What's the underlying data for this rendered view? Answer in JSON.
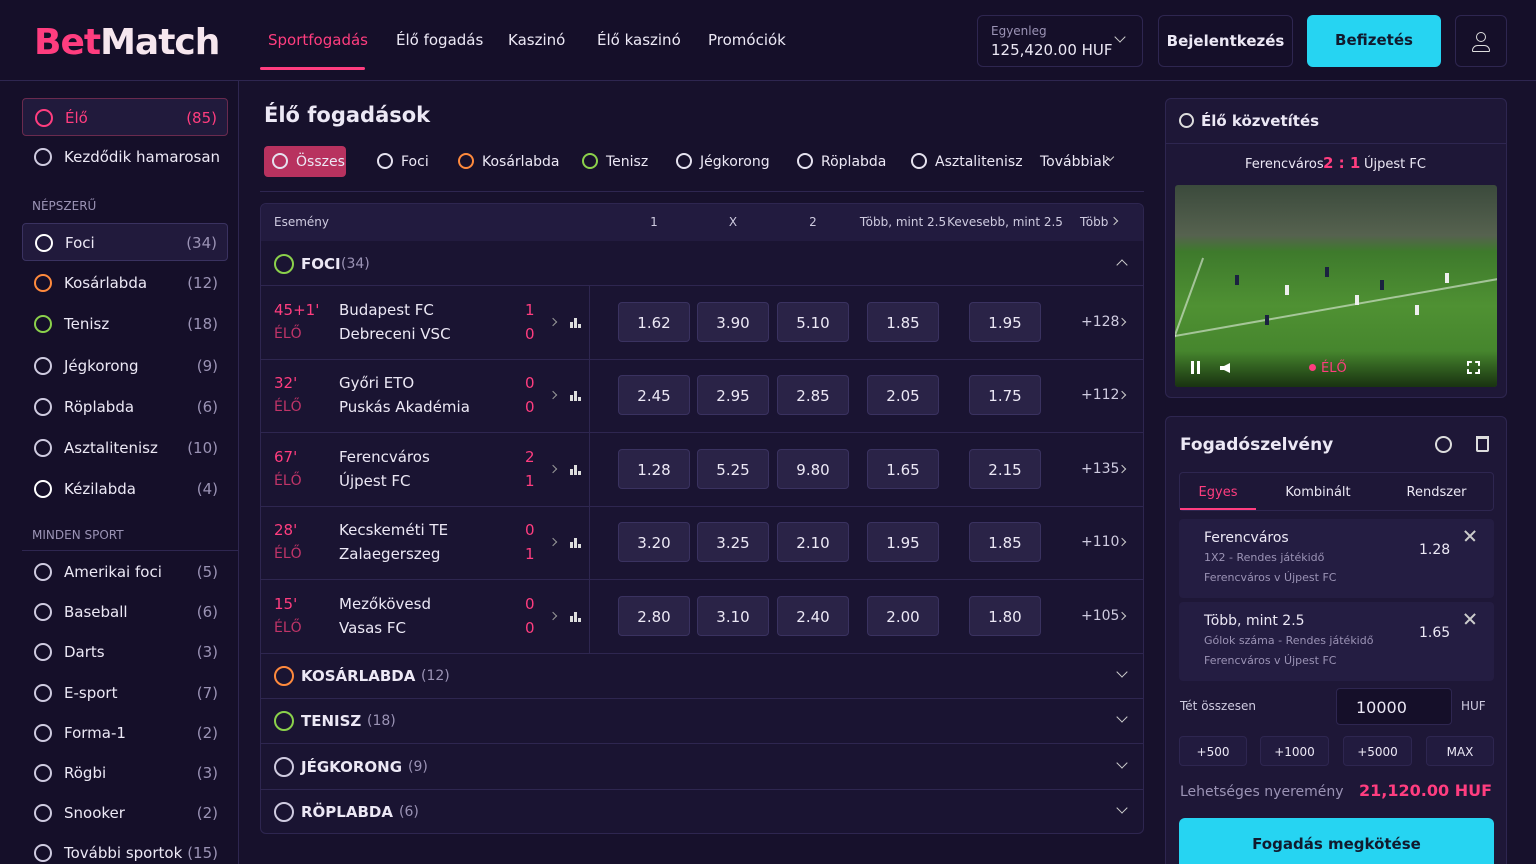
{
  "header": {
    "logo": {
      "part1": "Bet",
      "part2": "Match"
    },
    "nav": [
      "Sportfogadás",
      "Élő fogadás",
      "Kaszinó",
      "Élő kaszinó",
      "Promóciók"
    ],
    "balance_label": "Egyenleg",
    "balance": "125,420.00 HUF",
    "login": "Bejelentkezés",
    "deposit": "Befizetés"
  },
  "sidebar": {
    "live": {
      "label": "Élő",
      "count": "(85)"
    },
    "soon": "Kezdődik hamarosan",
    "popular_title": "NÉPSZERŰ",
    "popular": [
      {
        "label": "Foci",
        "count": "(34)"
      },
      {
        "label": "Kosárlabda",
        "count": "(12)"
      },
      {
        "label": "Tenisz",
        "count": "(18)"
      },
      {
        "label": "Jégkorong",
        "count": "(9)"
      },
      {
        "label": "Röplabda",
        "count": "(6)"
      },
      {
        "label": "Asztalitenisz",
        "count": "(10)"
      },
      {
        "label": "Kézilabda",
        "count": "(4)"
      }
    ],
    "all_title": "MINDEN SPORT",
    "all": [
      {
        "label": "Amerikai foci",
        "count": "(5)"
      },
      {
        "label": "Baseball",
        "count": "(6)"
      },
      {
        "label": "Darts",
        "count": "(3)"
      },
      {
        "label": "E-sport",
        "count": "(7)"
      },
      {
        "label": "Forma-1",
        "count": "(2)"
      },
      {
        "label": "Rögbi",
        "count": "(3)"
      },
      {
        "label": "Snooker",
        "count": "(2)"
      },
      {
        "label": "További sportok",
        "count": "(15)"
      }
    ]
  },
  "main": {
    "title": "Élő fogadások",
    "tabs": [
      "Összes",
      "Foci",
      "Kosárlabda",
      "Tenisz",
      "Jégkorong",
      "Röplabda",
      "Asztalitenisz"
    ],
    "more_tab": "Továbbiak",
    "columns": [
      "Esemény",
      "1",
      "X",
      "2",
      "Több, mint 2.5",
      "Kevesebb, mint 2.5",
      "Több"
    ],
    "open_group": {
      "name": "FOCI",
      "count": "(34)"
    },
    "matches": [
      {
        "time": "45+1'",
        "status": "ÉLŐ",
        "home": "Budapest FC",
        "away": "Debreceni VSC",
        "score_home": "1",
        "score_away": "0",
        "odds": [
          "1.62",
          "3.90",
          "5.10",
          "1.85",
          "1.95"
        ],
        "more": "+128"
      },
      {
        "time": "32'",
        "status": "ÉLŐ",
        "home": "Győri ETO",
        "away": "Puskás Akadémia",
        "score_home": "0",
        "score_away": "0",
        "odds": [
          "2.45",
          "2.95",
          "2.85",
          "2.05",
          "1.75"
        ],
        "more": "+112"
      },
      {
        "time": "67'",
        "status": "ÉLŐ",
        "home": "Ferencváros",
        "away": "Újpest FC",
        "score_home": "2",
        "score_away": "1",
        "odds": [
          "1.28",
          "5.25",
          "9.80",
          "1.65",
          "2.15"
        ],
        "more": "+135"
      },
      {
        "time": "28'",
        "status": "ÉLŐ",
        "home": "Kecskeméti TE",
        "away": "Zalaegerszeg",
        "score_home": "0",
        "score_away": "1",
        "odds": [
          "3.20",
          "3.25",
          "2.10",
          "1.95",
          "1.85"
        ],
        "more": "+110"
      },
      {
        "time": "15'",
        "status": "ÉLŐ",
        "home": "Mezőkövesd",
        "away": "Vasas FC",
        "score_home": "0",
        "score_away": "0",
        "odds": [
          "2.80",
          "3.10",
          "2.40",
          "2.00",
          "1.80"
        ],
        "more": "+105"
      }
    ],
    "groups": [
      {
        "name": "KOSÁRLABDA",
        "count": "(12)"
      },
      {
        "name": "TENISZ",
        "count": "(18)"
      },
      {
        "name": "JÉGKORONG",
        "count": "(9)"
      },
      {
        "name": "RÖPLABDA",
        "count": "(6)"
      }
    ]
  },
  "stream": {
    "title": "Élő közvetítés",
    "home": "Ferencváros",
    "score": "2 : 1",
    "away": "Újpest FC",
    "live": "ÉLŐ"
  },
  "betslip": {
    "title": "Fogadószelvény",
    "tabs": [
      "Egyes",
      "Kombinált",
      "Rendszer"
    ],
    "bets": [
      {
        "title": "Ferencváros",
        "odds": "1.28",
        "line1": "1X2 - Rendes játékidő",
        "line2": "Ferencváros v Újpest FC"
      },
      {
        "title": "Több, mint 2.5",
        "odds": "1.65",
        "line1": "Gólok száma - Rendes játékidő",
        "line2": "Ferencváros v Újpest FC"
      }
    ],
    "stake_label": "Tét összesen",
    "stake": "10000",
    "currency": "HUF",
    "quick": [
      "+500",
      "+1000",
      "+5000",
      "MAX"
    ],
    "payout_label": "Lehetséges nyeremény",
    "payout": "21,120.00 HUF",
    "submit": "Fogadás megkötése"
  }
}
